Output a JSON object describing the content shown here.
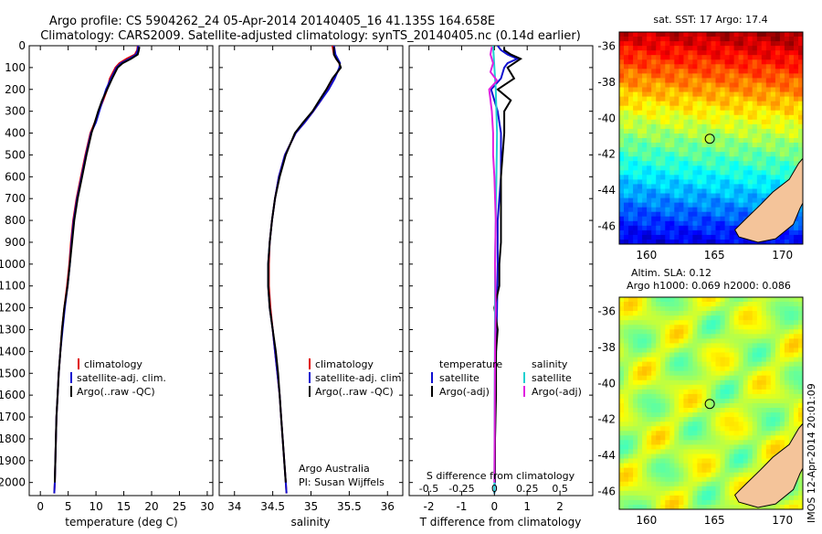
{
  "title": {
    "line1": "Argo profile: CS 5904262_24 05-Apr-2014 20140405_16 41.135S 164.658E",
    "line2": "Climatology: CARS2009. Satellite-adjusted climatology: synTS_20140405.nc (0.14d earlier)"
  },
  "side_stamp": "IMOS 12-Apr-2014 20:01:09",
  "colors": {
    "climatology": "#e00000",
    "satellite": "#1010d0",
    "argo": "#000000",
    "sal_satellite": "#20d0d0",
    "sal_argo": "#e020e0",
    "land": "#f4c49a"
  },
  "chart_data": [
    {
      "id": "temperature",
      "type": "line",
      "xlabel": "temperature (deg C)",
      "xlim": [
        -2,
        31
      ],
      "xticks": [
        0,
        5,
        10,
        15,
        20,
        25,
        30
      ],
      "ylim": [
        2060,
        0
      ],
      "yticks": [
        0,
        100,
        200,
        300,
        400,
        500,
        600,
        700,
        800,
        900,
        1000,
        1100,
        1200,
        1300,
        1400,
        1500,
        1600,
        1700,
        1800,
        1900,
        2000
      ],
      "legend": [
        "climatology",
        "satellite-adj. clim.",
        "Argo(..raw -QC)"
      ],
      "series": [
        {
          "name": "climatology",
          "depth": [
            0,
            20,
            40,
            60,
            80,
            100,
            150,
            200,
            250,
            300,
            350,
            400,
            500,
            600,
            700,
            800,
            900,
            1000,
            1100,
            1200,
            1300,
            1400,
            1500,
            1600,
            1700,
            1800,
            1900,
            2000,
            2050
          ],
          "values": [
            17.5,
            17.4,
            17,
            15.5,
            14.2,
            13.5,
            12.5,
            12,
            11.3,
            10.5,
            9.8,
            9,
            8.1,
            7.3,
            6.5,
            5.9,
            5.5,
            5.2,
            4.8,
            4.3,
            3.9,
            3.6,
            3.3,
            3.1,
            2.9,
            2.8,
            2.7,
            2.6,
            2.5
          ]
        },
        {
          "name": "satellite-adj. clim.",
          "depth": [
            0,
            20,
            40,
            60,
            80,
            100,
            150,
            200,
            250,
            300,
            350,
            400,
            500,
            600,
            700,
            800,
            900,
            1000,
            1100,
            1200,
            1300,
            1400,
            1500,
            1600,
            1700,
            1800,
            1900,
            2000,
            2050
          ],
          "values": [
            17.6,
            17.5,
            17.2,
            16,
            14.5,
            13.7,
            12.7,
            11.8,
            11.2,
            10.6,
            10,
            9.1,
            8.2,
            7.4,
            6.6,
            6,
            5.6,
            5.3,
            4.9,
            4.4,
            4,
            3.6,
            3.3,
            3.1,
            2.9,
            2.8,
            2.7,
            2.6,
            2.5
          ]
        },
        {
          "name": "Argo(..raw -QC)",
          "depth": [
            5,
            20,
            40,
            60,
            80,
            100,
            150,
            200,
            250,
            300,
            350,
            400,
            500,
            600,
            700,
            800,
            900,
            1000,
            1100,
            1200,
            1300,
            1400,
            1500,
            1600,
            1700,
            1800,
            1900,
            2000
          ],
          "values": [
            17.8,
            17.7,
            17.5,
            16.3,
            14.8,
            13.9,
            12.9,
            12,
            11.1,
            10.4,
            9.8,
            9.2,
            8.3,
            7.5,
            6.7,
            6.1,
            5.7,
            5.3,
            4.9,
            4.3,
            3.9,
            3.6,
            3.3,
            3.1,
            2.9,
            2.8,
            2.7,
            2.6
          ]
        }
      ]
    },
    {
      "id": "salinity",
      "type": "line",
      "xlabel": "salinity",
      "xlim": [
        33.8,
        36.2
      ],
      "xticks": [
        34,
        34.5,
        35,
        35.5,
        36
      ],
      "ylim": [
        2060,
        0
      ],
      "legend": [
        "climatology",
        "satellite-adj. clim.",
        "Argo(..raw -QC)"
      ],
      "annotation": [
        "Argo Australia",
        "PI: Susan Wijffels"
      ],
      "series": [
        {
          "name": "climatology",
          "depth": [
            0,
            20,
            40,
            60,
            80,
            100,
            150,
            200,
            250,
            300,
            350,
            400,
            500,
            600,
            700,
            800,
            900,
            1000,
            1100,
            1200,
            1300,
            1400,
            1500,
            1600,
            1700,
            1800,
            1900,
            2000,
            2050
          ],
          "values": [
            35.28,
            35.29,
            35.3,
            35.33,
            35.37,
            35.38,
            35.3,
            35.22,
            35.13,
            35.03,
            34.92,
            34.8,
            34.66,
            34.58,
            34.53,
            34.49,
            34.46,
            34.45,
            34.45,
            34.47,
            34.5,
            34.53,
            34.56,
            34.59,
            34.61,
            34.63,
            34.65,
            34.67,
            34.68
          ]
        },
        {
          "name": "satellite-adj. clim.",
          "depth": [
            0,
            20,
            40,
            60,
            80,
            100,
            150,
            200,
            250,
            300,
            350,
            400,
            500,
            600,
            700,
            800,
            900,
            1000,
            1100,
            1200,
            1300,
            1400,
            1500,
            1600,
            1700,
            1800,
            1900,
            2000,
            2050
          ],
          "values": [
            35.3,
            35.31,
            35.32,
            35.35,
            35.38,
            35.37,
            35.31,
            35.23,
            35.13,
            35.03,
            34.92,
            34.8,
            34.66,
            34.58,
            34.53,
            34.49,
            34.46,
            34.44,
            34.44,
            34.46,
            34.5,
            34.53,
            34.56,
            34.59,
            34.61,
            34.63,
            34.65,
            34.67,
            34.68
          ]
        },
        {
          "name": "Argo(..raw -QC)",
          "depth": [
            5,
            20,
            40,
            60,
            80,
            100,
            150,
            200,
            250,
            300,
            350,
            400,
            500,
            600,
            700,
            800,
            900,
            1000,
            1100,
            1200,
            1300,
            1400,
            1500,
            1600,
            1700,
            1800,
            1900,
            2000
          ],
          "values": [
            35.3,
            35.3,
            35.3,
            35.33,
            35.37,
            35.39,
            35.28,
            35.2,
            35.11,
            35.02,
            34.9,
            34.79,
            34.67,
            34.59,
            34.53,
            34.49,
            34.46,
            34.44,
            34.44,
            34.46,
            34.5,
            34.54,
            34.57,
            34.59,
            34.61,
            34.63,
            34.65,
            34.67
          ]
        }
      ]
    },
    {
      "id": "differences",
      "type": "line",
      "xlabel": "T difference from climatology",
      "xlabel2": "S difference from climatology",
      "xlim": [
        -2.6,
        3
      ],
      "xticks": [
        -2,
        -1,
        0,
        1,
        2
      ],
      "xticks2": [
        -0.5,
        -0.25,
        0,
        0.25,
        0.5
      ],
      "ylim": [
        2060,
        0
      ],
      "legend_left_title": "temperature",
      "legend_right_title": "salinity",
      "legend_left": [
        "satellite",
        "Argo(-adj)"
      ],
      "legend_right": [
        "satellite",
        "Argo(-adj)"
      ],
      "series": [
        {
          "name": "temperature satellite",
          "depth": [
            0,
            20,
            40,
            60,
            80,
            100,
            150,
            200,
            300,
            400,
            500,
            600,
            700,
            800,
            900,
            1000,
            1200,
            1400,
            1600,
            1800,
            2000,
            2050
          ],
          "values": [
            0.1,
            0.2,
            0.4,
            0.7,
            0.4,
            0.3,
            0.2,
            -0.1,
            0.1,
            0.2,
            0.2,
            0.2,
            0.15,
            0.1,
            0.1,
            0.1,
            0.08,
            0.05,
            0.03,
            0.02,
            0.01,
            0
          ]
        },
        {
          "name": "temperature Argo(-adj)",
          "depth": [
            5,
            20,
            40,
            60,
            80,
            100,
            150,
            200,
            250,
            300,
            400,
            500,
            600,
            700,
            800,
            900,
            1000,
            1100,
            1200,
            1300,
            1400,
            1500,
            1600,
            1800,
            2000
          ],
          "values": [
            0.3,
            0.3,
            0.5,
            0.8,
            0.6,
            0.4,
            0.6,
            0.1,
            0.5,
            0.3,
            0.3,
            0.25,
            0.2,
            0.2,
            0.2,
            0.2,
            0.15,
            0.15,
            0,
            0.1,
            0.05,
            0.05,
            0.05,
            0.02,
            0.02
          ]
        },
        {
          "name": "salinity satellite",
          "depth": [
            0,
            50,
            100,
            200,
            400,
            600,
            800,
            1000,
            1200,
            1400,
            1600,
            1800,
            2000,
            2050
          ],
          "values": [
            -0.01,
            -0.005,
            0,
            0.01,
            0.02,
            0.015,
            0.01,
            0.005,
            0.005,
            0.003,
            0.002,
            0.001,
            0,
            0
          ]
        },
        {
          "name": "salinity Argo(-adj)",
          "depth": [
            5,
            40,
            80,
            120,
            160,
            200,
            300,
            400,
            500,
            600,
            800,
            1000,
            1200,
            1400,
            1600,
            1800,
            2000
          ],
          "values": [
            -0.02,
            -0.03,
            -0.01,
            -0.03,
            0.02,
            -0.04,
            -0.02,
            -0.01,
            -0.01,
            0,
            0.01,
            0.005,
            0.01,
            0.005,
            0.003,
            0.002,
            0
          ]
        }
      ]
    },
    {
      "id": "sst-map",
      "type": "heatmap",
      "title": "sat. SST: 17 Argo: 17.4",
      "xticks": [
        160,
        165,
        170
      ],
      "yticks": [
        -36,
        -38,
        -40,
        -42,
        -44,
        -46
      ],
      "xlim": [
        158,
        171.5
      ],
      "ylim": [
        -47,
        -35.2
      ],
      "argo_position": {
        "lon": 164.658,
        "lat": -41.135
      }
    },
    {
      "id": "sla-map",
      "type": "heatmap",
      "title": "Altim. SLA: 0.12",
      "subtitle": "Argo h1000: 0.069 h2000: 0.086",
      "xticks": [
        160,
        165,
        170
      ],
      "yticks": [
        -36,
        -38,
        -40,
        -42,
        -44,
        -46
      ],
      "xlim": [
        158,
        171.5
      ],
      "ylim": [
        -47,
        -35.2
      ],
      "argo_position": {
        "lon": 164.658,
        "lat": -41.135
      }
    }
  ]
}
